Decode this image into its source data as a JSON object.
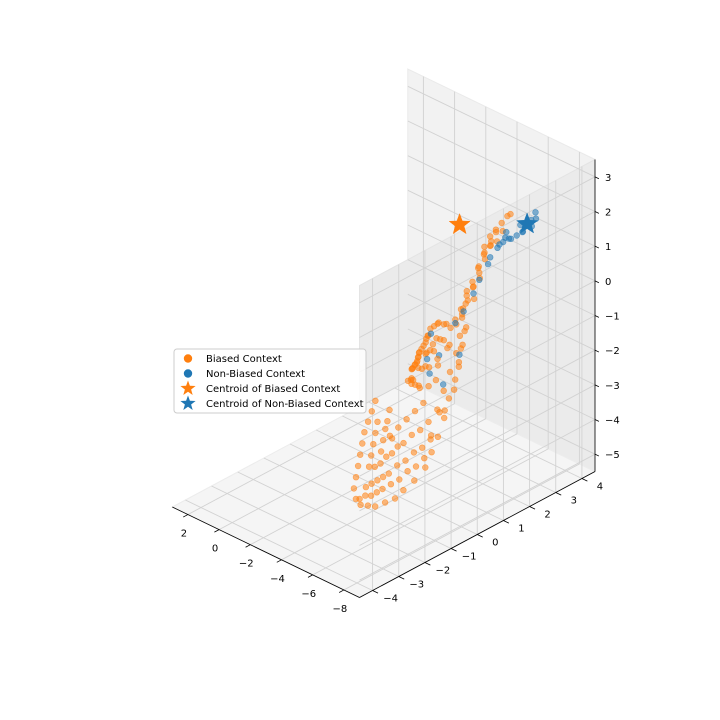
{
  "chart_data": {
    "type": "scatter3d",
    "title": "",
    "xlabel": "",
    "ylabel": "",
    "zlabel": "",
    "xlim": [
      -9,
      3
    ],
    "ylim": [
      -4.5,
      4.5
    ],
    "zlim": [
      -5.5,
      3.5
    ],
    "x_ticks": [
      -8,
      -6,
      -4,
      -2,
      0,
      2
    ],
    "y_ticks": [
      -4,
      -3,
      -2,
      -1,
      0,
      1,
      2,
      3,
      4
    ],
    "z_ticks": [
      -5,
      -4,
      -3,
      -2,
      -1,
      0,
      1,
      2,
      3
    ],
    "grid": true,
    "legend_position": "center-left",
    "colors": {
      "biased": "#ff7f0e",
      "non_biased": "#1f77b4"
    },
    "legend": [
      {
        "key": "biased",
        "label": "Biased Context",
        "marker": "circle"
      },
      {
        "key": "non_biased",
        "label": "Non-Biased Context",
        "marker": "circle"
      },
      {
        "key": "centroid_biased",
        "label": "Centroid of Biased Context",
        "marker": "star"
      },
      {
        "key": "centroid_non_biased",
        "label": "Centroid of Non-Biased Context",
        "marker": "star"
      }
    ],
    "centroids": [
      {
        "series": "Centroid of Biased Context",
        "x": -2.0,
        "y": 3.5,
        "z": 0.5
      },
      {
        "series": "Centroid of Non-Biased Context",
        "x": -7.5,
        "y": 2.8,
        "z": 2.0
      }
    ],
    "series": [
      {
        "name": "Biased Context",
        "color": "#ff7f0e",
        "points": [
          [
            -3.8,
            1.6,
            -2.4
          ],
          [
            -3.6,
            1.7,
            -2.3
          ],
          [
            -3.4,
            1.5,
            -2.5
          ],
          [
            -3.2,
            1.8,
            -2.2
          ],
          [
            -3.0,
            1.6,
            -2.6
          ],
          [
            -2.8,
            1.9,
            -2.3
          ],
          [
            -2.6,
            1.7,
            -2.8
          ],
          [
            -2.4,
            2.0,
            -2.5
          ],
          [
            -2.2,
            1.8,
            -2.9
          ],
          [
            -3.9,
            1.9,
            -2.0
          ],
          [
            -3.5,
            2.0,
            -1.9
          ],
          [
            -3.1,
            2.1,
            -2.0
          ],
          [
            -2.7,
            2.2,
            -2.1
          ],
          [
            -2.3,
            2.3,
            -2.4
          ],
          [
            -2.0,
            2.2,
            -2.7
          ],
          [
            -1.8,
            2.4,
            -2.3
          ],
          [
            -1.6,
            2.1,
            -3.0
          ],
          [
            -1.5,
            2.5,
            -2.6
          ],
          [
            -1.3,
            2.3,
            -3.1
          ],
          [
            -1.2,
            2.6,
            -2.8
          ],
          [
            -1.0,
            2.4,
            -3.3
          ],
          [
            -0.9,
            2.7,
            -3.0
          ],
          [
            -0.8,
            2.5,
            -3.4
          ],
          [
            -0.6,
            2.8,
            -3.2
          ],
          [
            -0.5,
            2.6,
            -3.6
          ],
          [
            -0.4,
            2.9,
            -3.3
          ],
          [
            -0.3,
            2.7,
            -3.7
          ],
          [
            -0.2,
            3.0,
            -3.5
          ],
          [
            -0.1,
            2.8,
            -3.8
          ],
          [
            0.0,
            3.1,
            -3.6
          ],
          [
            -4.0,
            1.4,
            -2.7
          ],
          [
            -3.7,
            1.3,
            -2.9
          ],
          [
            -3.3,
            1.2,
            -3.0
          ],
          [
            -2.9,
            1.4,
            -3.1
          ],
          [
            -2.5,
            1.5,
            -3.2
          ],
          [
            -2.1,
            1.6,
            -3.3
          ],
          [
            -1.7,
            1.9,
            -3.4
          ],
          [
            -1.4,
            2.0,
            -3.5
          ],
          [
            -1.1,
            2.2,
            -3.6
          ],
          [
            -0.7,
            2.3,
            -3.8
          ],
          [
            -4.2,
            1.8,
            -1.8
          ],
          [
            -3.6,
            2.2,
            -1.6
          ],
          [
            -3.0,
            2.4,
            -1.7
          ],
          [
            -2.5,
            2.6,
            -1.9
          ],
          [
            -2.0,
            2.7,
            -2.0
          ],
          [
            -1.6,
            2.9,
            -2.2
          ],
          [
            -1.2,
            3.0,
            -2.4
          ],
          [
            -0.8,
            3.1,
            -2.6
          ],
          [
            -0.5,
            3.2,
            -2.9
          ],
          [
            -0.2,
            3.3,
            -3.1
          ],
          [
            -4.4,
            1.3,
            -3.5
          ],
          [
            -4.2,
            1.0,
            -3.7
          ],
          [
            -4.0,
            0.8,
            -3.9
          ],
          [
            -3.8,
            0.6,
            -4.0
          ],
          [
            -3.6,
            0.4,
            -4.2
          ],
          [
            -3.4,
            0.3,
            -4.3
          ],
          [
            -3.2,
            0.2,
            -4.5
          ],
          [
            -3.0,
            0.1,
            -4.6
          ],
          [
            -2.8,
            0.0,
            -4.8
          ],
          [
            -2.6,
            -0.1,
            -4.9
          ],
          [
            -4.5,
            0.9,
            -4.1
          ],
          [
            -4.3,
            0.7,
            -4.3
          ],
          [
            -4.1,
            0.5,
            -4.4
          ],
          [
            -3.9,
            0.3,
            -4.6
          ],
          [
            -3.7,
            0.1,
            -4.7
          ],
          [
            -3.5,
            -0.1,
            -4.9
          ],
          [
            -3.3,
            -0.2,
            -5.0
          ],
          [
            -3.1,
            -0.3,
            -5.1
          ],
          [
            -2.9,
            -0.4,
            -5.2
          ],
          [
            -2.7,
            -0.5,
            -5.3
          ],
          [
            -4.6,
            0.6,
            -4.5
          ],
          [
            -4.4,
            0.4,
            -4.7
          ],
          [
            -4.2,
            0.2,
            -4.8
          ],
          [
            -4.0,
            0.0,
            -5.0
          ],
          [
            -3.8,
            -0.2,
            -5.1
          ],
          [
            -3.6,
            -0.4,
            -5.2
          ],
          [
            -3.4,
            -0.5,
            -5.3
          ],
          [
            -3.2,
            -0.6,
            -5.4
          ],
          [
            -3.0,
            -0.7,
            -5.4
          ],
          [
            -2.8,
            -0.8,
            -5.5
          ],
          [
            -2.5,
            0.2,
            -4.6
          ],
          [
            -2.3,
            0.4,
            -4.4
          ],
          [
            -2.1,
            0.6,
            -4.2
          ],
          [
            -1.9,
            0.8,
            -4.1
          ],
          [
            -1.7,
            1.0,
            -3.9
          ],
          [
            -2.4,
            -0.2,
            -4.9
          ],
          [
            -2.2,
            0.0,
            -4.7
          ],
          [
            -2.0,
            0.2,
            -4.5
          ],
          [
            -1.8,
            0.4,
            -4.3
          ],
          [
            -1.6,
            0.6,
            -4.1
          ],
          [
            -4.8,
            1.0,
            -4.0
          ],
          [
            -4.9,
            0.7,
            -4.3
          ],
          [
            -5.0,
            0.4,
            -4.6
          ],
          [
            -4.8,
            0.1,
            -4.9
          ],
          [
            -4.6,
            -0.2,
            -5.1
          ],
          [
            -4.4,
            -0.4,
            -5.3
          ],
          [
            -4.1,
            -0.6,
            -5.4
          ],
          [
            -3.8,
            -0.8,
            -5.5
          ],
          [
            -3.5,
            -0.9,
            -5.5
          ],
          [
            -3.2,
            -1.0,
            -5.5
          ],
          [
            -2.9,
            -1.0,
            -5.4
          ],
          [
            -2.6,
            -0.9,
            -5.2
          ],
          [
            -2.4,
            -0.7,
            -5.0
          ],
          [
            -2.2,
            -0.5,
            -4.8
          ],
          [
            -2.0,
            -0.3,
            -4.6
          ],
          [
            -1.8,
            -0.1,
            -4.4
          ],
          [
            -1.6,
            0.1,
            -4.2
          ],
          [
            -1.5,
            0.3,
            -4.0
          ],
          [
            -1.4,
            0.5,
            -3.8
          ],
          [
            -1.3,
            0.7,
            -3.6
          ],
          [
            -4.7,
            1.3,
            -3.6
          ],
          [
            -4.5,
            1.6,
            -3.2
          ],
          [
            -4.4,
            1.9,
            -2.8
          ],
          [
            -4.3,
            2.1,
            -2.4
          ],
          [
            -4.2,
            2.3,
            -2.0
          ],
          [
            -4.1,
            2.5,
            -1.6
          ],
          [
            -4.6,
            1.1,
            -3.3
          ],
          [
            -4.5,
            1.4,
            -2.9
          ],
          [
            -4.4,
            1.7,
            -2.5
          ],
          [
            -4.3,
            2.0,
            -2.1
          ],
          [
            -4.2,
            2.2,
            -1.7
          ],
          [
            -4.0,
            2.4,
            -1.3
          ],
          [
            -3.9,
            2.6,
            -1.0
          ],
          [
            -3.8,
            2.7,
            -0.7
          ],
          [
            -4.7,
            0.8,
            -3.9
          ],
          [
            -4.9,
            1.2,
            -3.3
          ],
          [
            -5.0,
            1.5,
            -2.8
          ],
          [
            -4.8,
            1.8,
            -2.3
          ],
          [
            -4.6,
            2.0,
            -1.9
          ],
          [
            -4.5,
            2.2,
            -1.5
          ],
          [
            -3.7,
            1.1,
            -3.3
          ],
          [
            -3.5,
            0.9,
            -3.5
          ],
          [
            -3.3,
            0.7,
            -3.7
          ],
          [
            -3.1,
            0.5,
            -3.9
          ],
          [
            -2.9,
            0.3,
            -4.1
          ],
          [
            -2.7,
            0.5,
            -4.3
          ],
          [
            -5.2,
            2.8,
            1.0
          ],
          [
            -5.0,
            2.9,
            0.8
          ],
          [
            -4.9,
            2.7,
            0.6
          ],
          [
            -4.8,
            2.8,
            0.4
          ],
          [
            -4.7,
            2.6,
            0.2
          ],
          [
            -4.6,
            2.7,
            0.0
          ],
          [
            -4.5,
            2.5,
            -0.2
          ],
          [
            -4.4,
            2.6,
            -0.4
          ],
          [
            -4.3,
            2.4,
            -0.6
          ],
          [
            -4.2,
            2.5,
            -0.8
          ],
          [
            -5.1,
            2.6,
            0.9
          ],
          [
            -5.3,
            2.7,
            1.2
          ],
          [
            -5.5,
            2.8,
            1.4
          ],
          [
            -5.7,
            2.9,
            1.6
          ],
          [
            -5.9,
            3.0,
            1.8
          ],
          [
            -6.1,
            3.0,
            1.9
          ],
          [
            -5.4,
            2.9,
            1.0
          ],
          [
            -5.6,
            3.0,
            1.3
          ],
          [
            -4.1,
            2.3,
            -1.0
          ],
          [
            -4.0,
            2.4,
            -1.2
          ],
          [
            -3.9,
            2.2,
            -1.3
          ],
          [
            -3.8,
            2.3,
            -1.5
          ],
          [
            -4.6,
            2.9,
            0.5
          ],
          [
            -4.4,
            2.8,
            0.1
          ],
          [
            -4.3,
            2.9,
            -0.3
          ],
          [
            -4.2,
            2.7,
            -0.5
          ],
          [
            -4.1,
            2.8,
            -0.9
          ],
          [
            -3.9,
            2.5,
            -1.1
          ],
          [
            -4.8,
            3.0,
            0.7
          ],
          [
            -5.0,
            3.1,
            1.1
          ]
        ]
      },
      {
        "name": "Non-Biased Context",
        "color": "#1f77b4",
        "points": [
          [
            -7.9,
            2.9,
            2.2
          ],
          [
            -7.8,
            2.8,
            2.0
          ],
          [
            -7.6,
            2.9,
            2.1
          ],
          [
            -7.4,
            2.7,
            1.8
          ],
          [
            -7.2,
            2.8,
            1.7
          ],
          [
            -7.0,
            2.7,
            1.6
          ],
          [
            -6.8,
            2.6,
            1.5
          ],
          [
            -6.5,
            2.7,
            1.4
          ],
          [
            -6.3,
            2.6,
            1.3
          ],
          [
            -6.1,
            2.8,
            1.3
          ],
          [
            -5.9,
            2.7,
            1.1
          ],
          [
            -5.6,
            2.8,
            0.9
          ],
          [
            -5.3,
            2.7,
            0.6
          ],
          [
            -5.0,
            2.8,
            0.3
          ],
          [
            -4.6,
            2.7,
            -0.2
          ],
          [
            -4.4,
            2.6,
            -0.6
          ],
          [
            -4.1,
            2.4,
            -1.1
          ],
          [
            -3.9,
            2.2,
            -1.4
          ],
          [
            -4.3,
            1.5,
            -2.8
          ],
          [
            -3.6,
            1.4,
            -2.6
          ],
          [
            -3.2,
            2.0,
            -2.4
          ],
          [
            -2.6,
            1.9,
            -2.6
          ],
          [
            -2.0,
            2.4,
            -2.2
          ],
          [
            -4.5,
            2.0,
            -2.1
          ],
          [
            -7.7,
            3.0,
            2.3
          ],
          [
            -6.9,
            2.9,
            1.8
          ],
          [
            -6.0,
            2.9,
            1.4
          ]
        ]
      }
    ]
  }
}
